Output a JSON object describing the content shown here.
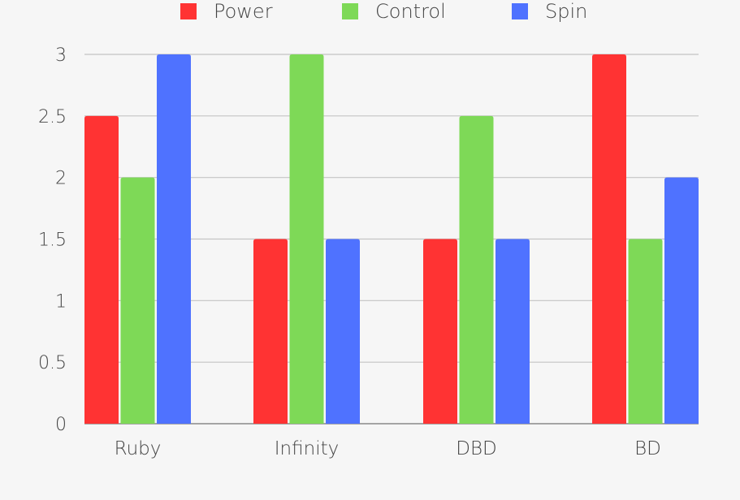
{
  "chart_data": {
    "type": "bar",
    "categories": [
      "Ruby",
      "Infinity",
      "DBD",
      "BD"
    ],
    "series": [
      {
        "name": "Power",
        "values": [
          2.5,
          1.5,
          1.5,
          3
        ],
        "color": "#ff3333"
      },
      {
        "name": "Control",
        "values": [
          2,
          3,
          2.5,
          1.5
        ],
        "color": "#7ed957"
      },
      {
        "name": "Spin",
        "values": [
          3,
          1.5,
          1.5,
          2
        ],
        "color": "#4f72ff"
      }
    ],
    "yticks": [
      "0",
      "0.5",
      "1",
      "1.5",
      "2",
      "2.5",
      "3"
    ],
    "ylim": [
      0,
      3
    ],
    "grid": true,
    "legend_position": "top"
  }
}
